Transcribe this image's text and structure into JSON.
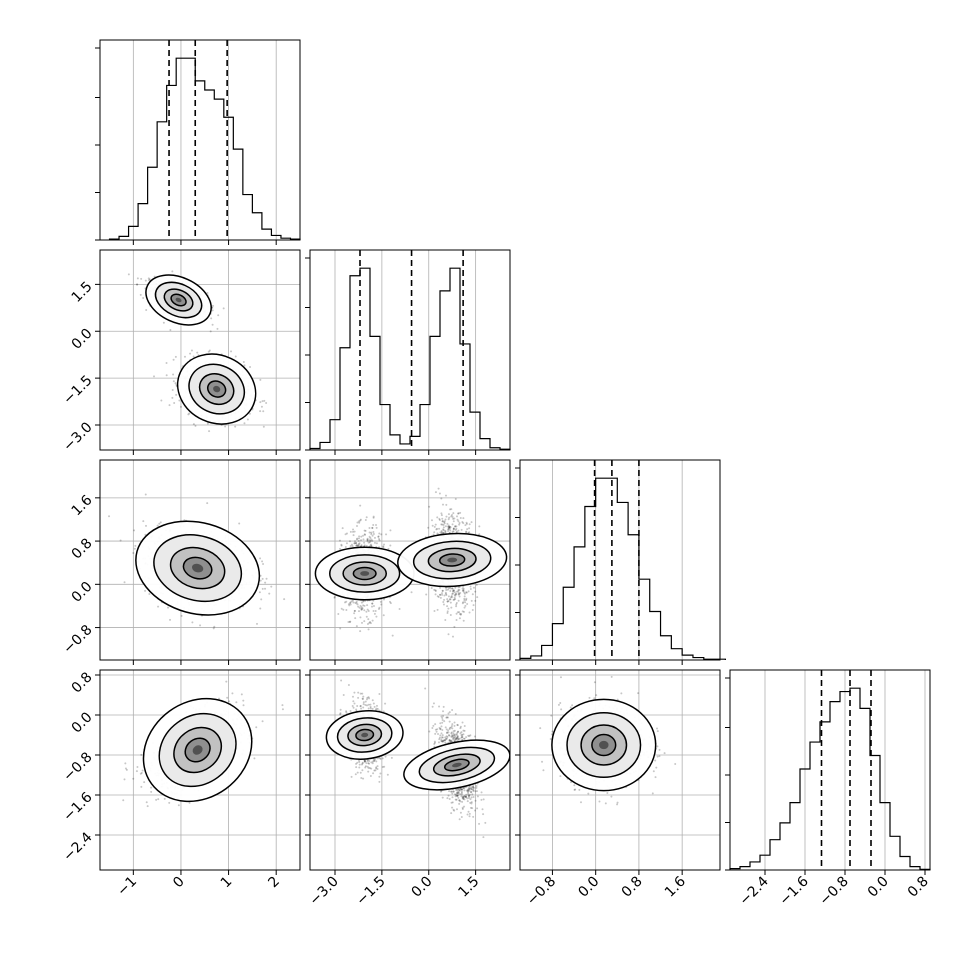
{
  "chart_data": {
    "type": "corner",
    "grid": true,
    "variables": [
      {
        "range": [
          -1.7,
          2.5
        ],
        "ticks": [
          -1,
          0,
          1,
          2
        ],
        "tick_labels": [
          "−1",
          "0",
          "1",
          "2"
        ]
      },
      {
        "range": [
          -3.8,
          2.6
        ],
        "ticks": [
          -3.0,
          -1.5,
          0.0,
          1.5
        ],
        "tick_labels": [
          "−3.0",
          "−1.5",
          "0.0",
          "1.5"
        ]
      },
      {
        "range": [
          -1.4,
          2.3
        ],
        "ticks": [
          -0.8,
          0.0,
          0.8,
          1.6
        ],
        "tick_labels": [
          "−0.8",
          "0.0",
          "0.8",
          "1.6"
        ]
      },
      {
        "range": [
          -3.1,
          0.9
        ],
        "ticks": [
          -2.4,
          -1.6,
          -0.8,
          0.0,
          0.8
        ],
        "tick_labels": [
          "−2.4",
          "−1.6",
          "−0.8",
          "0.0",
          "0.8"
        ]
      }
    ],
    "marginals": [
      {
        "quantiles": [
          -0.25,
          0.3,
          0.97
        ],
        "bin_edges": [
          -1.5,
          -1.3,
          -1.1,
          -0.9,
          -0.7,
          -0.5,
          -0.3,
          -0.1,
          0.1,
          0.3,
          0.5,
          0.7,
          0.9,
          1.1,
          1.3,
          1.5,
          1.7,
          1.9,
          2.1,
          2.3,
          2.5
        ],
        "counts": [
          1,
          4,
          15,
          40,
          80,
          130,
          170,
          200,
          200,
          175,
          165,
          155,
          135,
          100,
          50,
          30,
          12,
          5,
          2,
          1
        ]
      },
      {
        "quantiles": [
          -2.2,
          -0.55,
          1.1
        ],
        "bin_edges": [
          -3.8,
          -3.48,
          -3.16,
          -2.84,
          -2.52,
          -2.2,
          -1.88,
          -1.56,
          -1.24,
          -0.92,
          -0.6,
          -0.28,
          0.04,
          0.36,
          0.68,
          1.0,
          1.32,
          1.64,
          1.96,
          2.28,
          2.6
        ],
        "counts": [
          2,
          10,
          40,
          135,
          230,
          240,
          150,
          60,
          20,
          8,
          18,
          60,
          150,
          210,
          240,
          140,
          50,
          15,
          3,
          1
        ]
      },
      {
        "quantiles": [
          -0.02,
          0.3,
          0.8
        ],
        "bin_edges": [
          -1.4,
          -1.2,
          -1.0,
          -0.8,
          -0.6,
          -0.4,
          -0.2,
          0.0,
          0.2,
          0.4,
          0.6,
          0.8,
          1.0,
          1.2,
          1.4,
          1.6,
          1.8,
          2.0,
          2.2,
          2.4
        ],
        "counts": [
          2,
          5,
          18,
          45,
          90,
          140,
          190,
          225,
          225,
          195,
          155,
          100,
          60,
          30,
          14,
          6,
          3,
          1,
          1
        ]
      },
      {
        "quantiles": [
          -1.27,
          -0.7,
          -0.28
        ],
        "bin_edges": [
          -3.1,
          -2.9,
          -2.7,
          -2.5,
          -2.3,
          -2.1,
          -1.9,
          -1.7,
          -1.5,
          -1.3,
          -1.1,
          -0.9,
          -0.7,
          -0.5,
          -0.3,
          -0.1,
          0.1,
          0.3,
          0.5,
          0.7,
          0.9
        ],
        "counts": [
          2,
          5,
          12,
          22,
          45,
          70,
          100,
          150,
          190,
          220,
          250,
          265,
          270,
          240,
          170,
          100,
          50,
          20,
          5,
          1
        ]
      }
    ],
    "scatter_2d": [
      {
        "x_var": 0,
        "y_var": 1,
        "clusters": [
          {
            "mean": [
              -0.05,
              1.0
            ],
            "sd": [
              0.3,
              0.3
            ],
            "corr": -0.5,
            "levels": [
              2.4,
              1.7,
              1.05,
              0.55,
              0.22
            ]
          },
          {
            "mean": [
              0.75,
              -1.85
            ],
            "sd": [
              0.35,
              0.45
            ],
            "corr": -0.2,
            "levels": [
              2.4,
              1.7,
              1.05,
              0.55,
              0.22
            ]
          }
        ]
      },
      {
        "x_var": 0,
        "y_var": 2,
        "clusters": [
          {
            "mean": [
              0.35,
              0.3
            ],
            "sd": [
              0.55,
              0.35
            ],
            "corr": -0.2,
            "levels": [
              2.4,
              1.7,
              1.05,
              0.55,
              0.22
            ]
          }
        ]
      },
      {
        "x_var": 1,
        "y_var": 2,
        "clusters": [
          {
            "mean": [
              -2.05,
              0.2
            ],
            "sd": [
              0.35,
              0.38
            ],
            "corr": 0.0,
            "levels": [
              2.4,
              1.7,
              1.05,
              0.55,
              0.22
            ]
          },
          {
            "mean": [
              0.75,
              0.45
            ],
            "sd": [
              0.35,
              0.42
            ],
            "corr": -0.1,
            "levels": [
              2.4,
              1.7,
              1.05,
              0.55,
              0.22
            ]
          }
        ]
      },
      {
        "x_var": 0,
        "y_var": 3,
        "clusters": [
          {
            "mean": [
              0.35,
              -0.7
            ],
            "sd": [
              0.5,
              0.4
            ],
            "corr": 0.55,
            "levels": [
              2.4,
              1.7,
              1.05,
              0.55,
              0.22
            ]
          }
        ]
      },
      {
        "x_var": 1,
        "y_var": 3,
        "clusters": [
          {
            "mean": [
              -2.05,
              -0.4
            ],
            "sd": [
              0.32,
              0.32
            ],
            "corr": -0.1,
            "levels": [
              2.4,
              1.7,
              1.05,
              0.55,
              0.22
            ]
          },
          {
            "mean": [
              0.9,
              -1.0
            ],
            "sd": [
              0.3,
              0.45
            ],
            "corr": -0.45,
            "levels": [
              2.4,
              1.7,
              1.05,
              0.55,
              0.22
            ]
          }
        ]
      },
      {
        "x_var": 2,
        "y_var": 3,
        "clusters": [
          {
            "mean": [
              0.15,
              -0.6
            ],
            "sd": [
              0.4,
              0.38
            ],
            "corr": 0.0,
            "levels": [
              2.4,
              1.7,
              1.05,
              0.55,
              0.22
            ]
          }
        ]
      }
    ],
    "colors": {
      "hist": "#000000",
      "quantile": "#000000",
      "density": "#000000",
      "grid": "#b0b0b0"
    }
  }
}
